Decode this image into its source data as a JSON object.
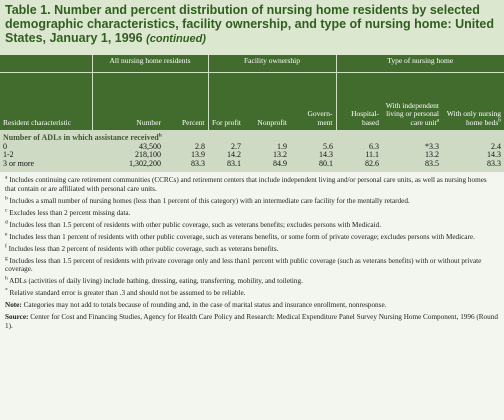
{
  "title": {
    "text": "Table 1. Number and percent distribution of nursing home residents by selected demographic characteristics, facility ownership, and type of nursing home: United States, January 1, 1996",
    "suffix": "(continued)"
  },
  "header": {
    "groups": [
      "All nursing home residents",
      "Facility ownership",
      "Type of nursing home"
    ],
    "first_column": "Resident characteristic",
    "columns": [
      {
        "label": "Number"
      },
      {
        "label": "Percent"
      },
      {
        "label": "For profit"
      },
      {
        "label": "Nonprofit"
      },
      {
        "label": "Govern-ment"
      },
      {
        "label": "Hospital-based"
      },
      {
        "label": "With independent living or personal care unit",
        "note": "a"
      },
      {
        "label": "With only nursing home beds",
        "note": "b"
      }
    ]
  },
  "table": {
    "section": {
      "label": "Number of ADLs in which assistance received",
      "note": "h"
    },
    "rows": [
      [
        "0",
        "43,500",
        "2.8",
        "2.7",
        "1.9",
        "5.6",
        "6.3",
        "*3.3",
        "2.4"
      ],
      [
        "1-2",
        "218,100",
        "13.9",
        "14.2",
        "13.2",
        "14.3",
        "11.1",
        "13.2",
        "14.3"
      ],
      [
        "3 or more",
        "1,302,200",
        "83.3",
        "83.1",
        "84.9",
        "80.1",
        "82.6",
        "83.5",
        "83.3"
      ]
    ]
  },
  "footnotes": [
    {
      "mark": "a",
      "text": "Includes continuing care retirement communities (CCRCs) and retirement centers that include independent living and/or personal care units, as well as nursing homes that contain or are affiliated with personal care units."
    },
    {
      "mark": "b",
      "text": "Includes a small number of nursing homes (less than 1 percent of this category) with an intermediate care facility for the mentally retarded."
    },
    {
      "mark": "c",
      "text": "Excludes less than 2 percent missing data."
    },
    {
      "mark": "d",
      "text": "Includes less than 1.5 percent of residents with other public coverage, such as veterans benefits; excludes persons with Medicaid."
    },
    {
      "mark": "e",
      "text": "Includes less than 1 percent of residents with other public coverage, such as veterans benefits, or some form of private coverage; excludes persons with Medicare."
    },
    {
      "mark": "f",
      "text": "Includes less than 2 percent of residents with other public coverage, such as veterans benefits."
    },
    {
      "mark": "g",
      "text": "Includes less than 1.5 percent of residents with private coverage only and less than1 percent with public coverage (such as veterans benefits) with or without private coverage."
    },
    {
      "mark": "h",
      "text": "ADLs (activities of daily living) include bathing, dressing, eating, transferring, mobility, and toileting."
    },
    {
      "mark": "*",
      "text": "Relative standard error is greater than .3 and should not be assumed to be reliable."
    }
  ],
  "note": {
    "label": "Note:",
    "text": "Categories may not add to totals because of rounding and, in the case of marital status and insurance enrollment, nonresponse."
  },
  "source": {
    "label": "Source:",
    "text": "Center for Cost and Financing Studies, Agency for Health Care Policy and Research: Medical Expenditure Panel Survey Nursing Home Component, 1996 (Round 1)."
  }
}
